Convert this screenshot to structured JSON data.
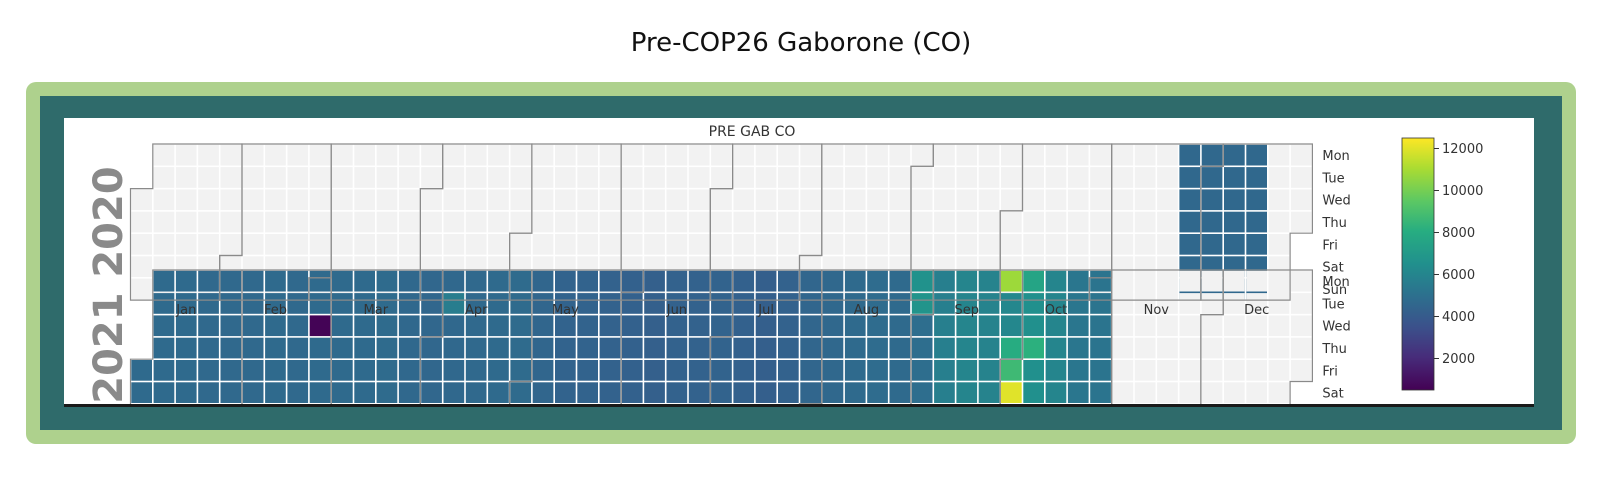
{
  "page": {
    "title": "Pre-COP26 Gaborone (CO)"
  },
  "chart_data": {
    "type": "heatmap",
    "subtype": "calendar",
    "title": "PRE GAB CO",
    "years": [
      "2020",
      "2021"
    ],
    "month_labels": [
      "Jan",
      "Feb",
      "Mar",
      "Apr",
      "May",
      "Jun",
      "Jul",
      "Aug",
      "Sep",
      "Oct",
      "Nov",
      "Dec"
    ],
    "weekday_labels": [
      "Mon",
      "Tue",
      "Wed",
      "Thu",
      "Fri",
      "Sat",
      "Sun"
    ],
    "colormap": "viridis",
    "colorbar": {
      "ticks": [
        2000,
        4000,
        6000,
        8000,
        10000,
        12000
      ],
      "min": 500,
      "max": 12500
    },
    "empty_color": "#f2f2f2",
    "data_ranges": [
      {
        "start": "2020-11-23",
        "end": "2020-12-20",
        "value": 4600
      },
      {
        "start": "2021-01-01",
        "end": "2021-10-31",
        "value": 4800
      }
    ],
    "weekly_values_2021": [
      4700,
      4700,
      4700,
      4650,
      4650,
      4650,
      4700,
      4650,
      4700,
      4700,
      4700,
      4750,
      4600,
      4550,
      4600,
      4650,
      4700,
      4750,
      4500,
      4400,
      4400,
      4350,
      4300,
      4250,
      4350,
      4350,
      4400,
      4300,
      4200,
      4350,
      4500,
      4600,
      4700,
      4800,
      4700,
      4900,
      5700,
      6000,
      5900,
      6100,
      6500,
      6000,
      5300,
      5200
    ],
    "overrides": [
      {
        "date": "2021-02-24",
        "value": 600
      },
      {
        "date": "2021-09-27",
        "value": 10800
      },
      {
        "date": "2021-10-02",
        "value": 12000
      },
      {
        "date": "2021-10-01",
        "value": 8700
      },
      {
        "date": "2021-09-30",
        "value": 8000
      },
      {
        "date": "2021-10-04",
        "value": 7600
      },
      {
        "date": "2021-10-07",
        "value": 8200
      },
      {
        "date": "2021-04-06",
        "value": 5600
      },
      {
        "date": "2021-08-30",
        "value": 6600
      },
      {
        "date": "2021-08-31",
        "value": 6700
      },
      {
        "date": "2021-09-05",
        "value": 6700
      }
    ]
  }
}
